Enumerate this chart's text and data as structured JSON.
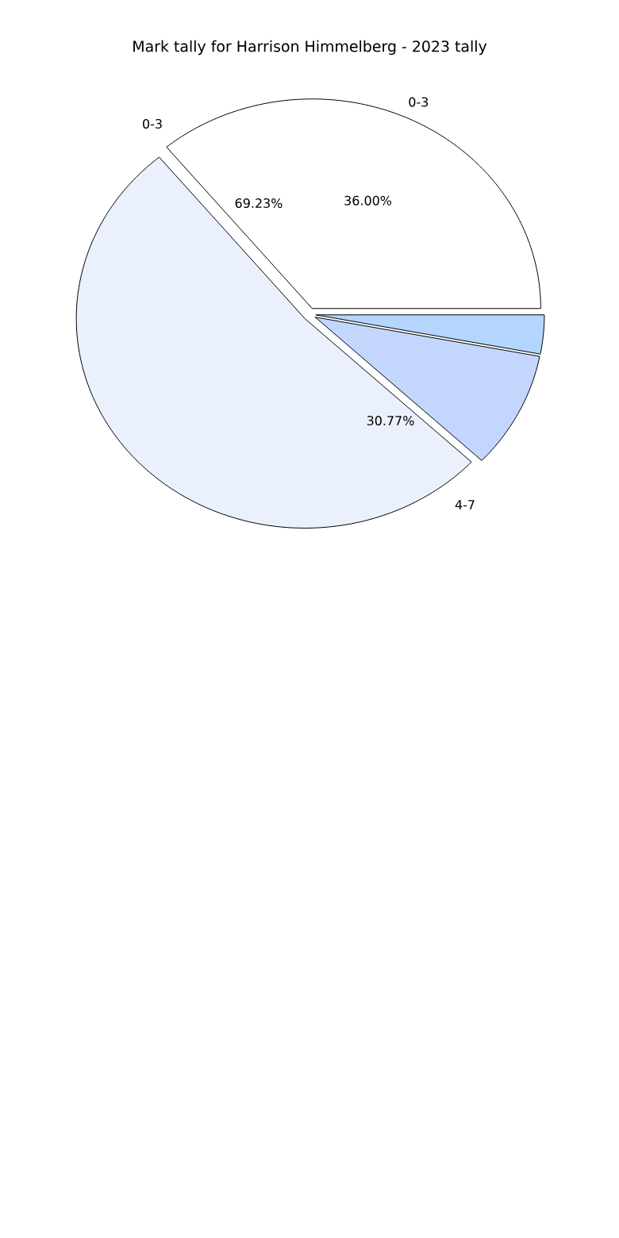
{
  "chart_data": {
    "type": "pie",
    "title": "Mark tally for Harrison Himmelberg - 2023 tally",
    "categories": [
      "0-3",
      null,
      null,
      null
    ],
    "values": [
      36,
      52,
      9,
      3
    ],
    "colors": [
      "#ffffff",
      "#eaf1fd",
      "#c3d7fe",
      "#b4d5fe"
    ],
    "value_labels": [
      "36.00%",
      null,
      null,
      null
    ],
    "annotations": [
      "0-3",
      "69.23%",
      "4-7",
      "30.77%"
    ]
  }
}
